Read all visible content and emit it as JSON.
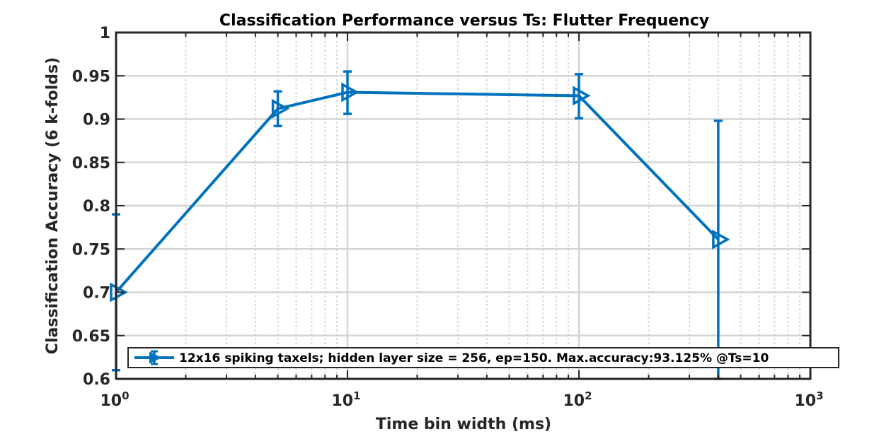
{
  "chart_data": {
    "type": "line",
    "title": "Classification Performance versus Ts: Flutter Frequency",
    "xlabel": "Time bin width (ms)",
    "ylabel": "Classification Accuracy (6 k-folds)",
    "xscale": "log",
    "xlim": [
      1,
      1000
    ],
    "ylim": [
      0.6,
      1
    ],
    "grid": true,
    "legend_position": "bottom-center",
    "x_tick_labels": [
      {
        "value": 1,
        "base": "10",
        "exp": "0"
      },
      {
        "value": 10,
        "base": "10",
        "exp": "1"
      },
      {
        "value": 100,
        "base": "10",
        "exp": "2"
      },
      {
        "value": 1000,
        "base": "10",
        "exp": "3"
      }
    ],
    "y_ticks": [
      0.6,
      0.65,
      0.7,
      0.75,
      0.8,
      0.85,
      0.9,
      0.95,
      1
    ],
    "y_tick_labels": [
      "0.6",
      "0.65",
      "0.7",
      "0.75",
      "0.8",
      "0.85",
      "0.9",
      "0.95",
      "1"
    ],
    "series": [
      {
        "name": "12x16 spiking taxels; hidden layer size = 256, ep=150. Max.accuracy:93.125% @Ts=10",
        "color": "#0072bd",
        "marker": "triangle-right",
        "x": [
          1,
          5,
          10,
          100,
          400
        ],
        "y": [
          0.7,
          0.912,
          0.931,
          0.927,
          0.761
        ],
        "err_low": [
          0.61,
          0.892,
          0.906,
          0.901,
          0.6
        ],
        "err_high": [
          0.79,
          0.932,
          0.955,
          0.952,
          0.898
        ]
      }
    ]
  }
}
